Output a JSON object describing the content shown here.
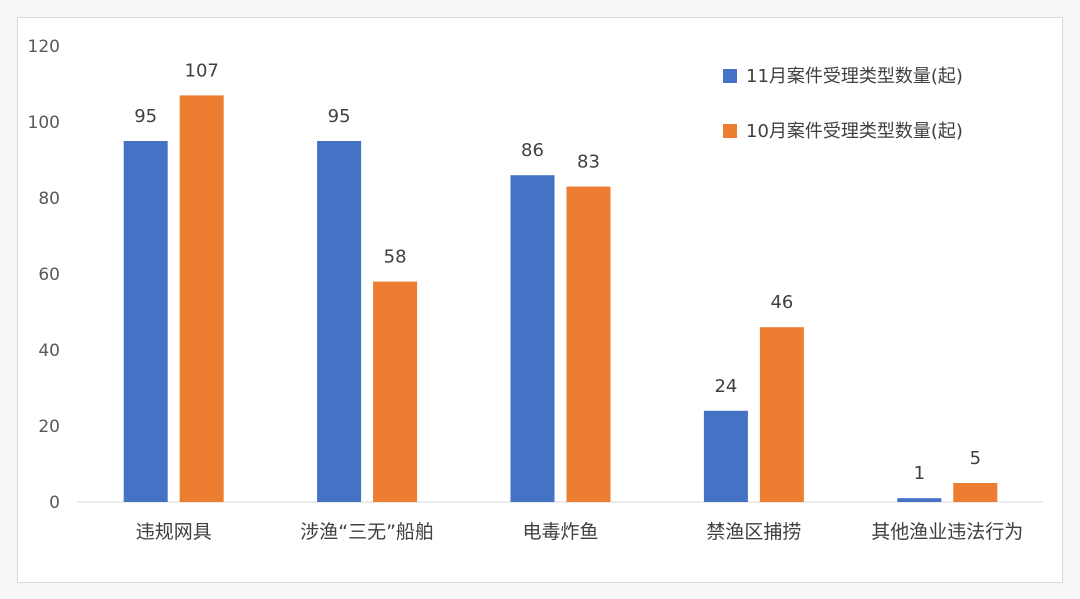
{
  "chart_data": {
    "type": "bar",
    "categories": [
      "违规网具",
      "涉渔“三无”船舶",
      "电毒炸鱼",
      "禁渔区捕捞",
      "其他渔业违法行为"
    ],
    "series": [
      {
        "name": "11月案件受理类型数量(起)",
        "values": [
          95,
          95,
          86,
          24,
          1
        ],
        "color": "#4472c4"
      },
      {
        "name": "10月案件受理类型数量(起)",
        "values": [
          107,
          58,
          83,
          46,
          5
        ],
        "color": "#ed7d31"
      }
    ],
    "yticks": [
      0,
      20,
      40,
      60,
      80,
      100,
      120
    ],
    "ylim": [
      0,
      120
    ],
    "grid": false,
    "legend_position": "top-right"
  }
}
